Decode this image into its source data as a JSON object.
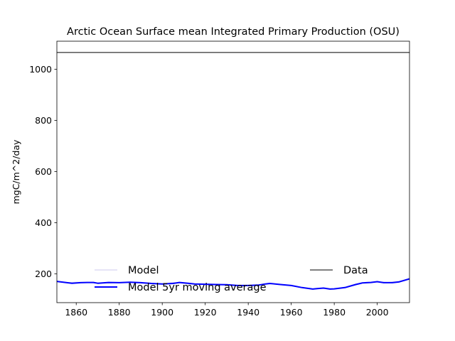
{
  "chart_data": {
    "type": "line",
    "title": "Arctic Ocean Surface mean Integrated Primary Production (OSU)",
    "xlabel": "",
    "ylabel": "mgC/m^2/day",
    "xlim": [
      1851,
      2015
    ],
    "ylim": [
      87,
      1110
    ],
    "xticks": [
      1860,
      1880,
      1900,
      1920,
      1940,
      1960,
      1980,
      2000
    ],
    "yticks": [
      200,
      400,
      600,
      800,
      1000
    ],
    "grid": false,
    "legend": {
      "placement": "lower-center",
      "columns": 2,
      "entries": [
        "Model",
        "Model 5yr moving average",
        "Data"
      ]
    },
    "series": [
      {
        "name": "Model",
        "style": "line",
        "color": "#d8d4f0",
        "x": [
          1851,
          1855,
          1860,
          1865,
          1870,
          1875,
          1880,
          1885,
          1890,
          1895,
          1900,
          1905,
          1910,
          1915,
          1920,
          1925,
          1930,
          1935,
          1940,
          1945,
          1950,
          1955,
          1960,
          1965,
          1970,
          1975,
          1980,
          1985,
          1990,
          1995,
          2000,
          2005,
          2010,
          2015
        ],
        "values": [
          170,
          165,
          167,
          166,
          164,
          163,
          165,
          166,
          163,
          162,
          160,
          166,
          162,
          160,
          158,
          156,
          155,
          153,
          155,
          157,
          161,
          157,
          153,
          146,
          140,
          143,
          140,
          148,
          160,
          167,
          168,
          166,
          170,
          180
        ]
      },
      {
        "name": "Model 5yr moving average",
        "style": "line",
        "color": "#0000ff",
        "x": [
          1851,
          1855,
          1858,
          1862,
          1865,
          1868,
          1870,
          1875,
          1880,
          1885,
          1890,
          1895,
          1900,
          1905,
          1908,
          1912,
          1915,
          1920,
          1925,
          1930,
          1935,
          1940,
          1945,
          1948,
          1950,
          1955,
          1960,
          1965,
          1970,
          1972,
          1975,
          1978,
          1980,
          1985,
          1990,
          1993,
          1997,
          2000,
          2003,
          2007,
          2010,
          2015
        ],
        "values": [
          170,
          166,
          163,
          165,
          166,
          166,
          163,
          166,
          165,
          167,
          165,
          162,
          160,
          162,
          166,
          163,
          160,
          159,
          158,
          157,
          154,
          154,
          156,
          160,
          162,
          158,
          154,
          146,
          140,
          142,
          144,
          140,
          141,
          146,
          158,
          164,
          166,
          169,
          165,
          165,
          168,
          180
        ]
      },
      {
        "name": "Data",
        "style": "hline",
        "color": "#000000",
        "values": [
          1066
        ]
      }
    ]
  }
}
